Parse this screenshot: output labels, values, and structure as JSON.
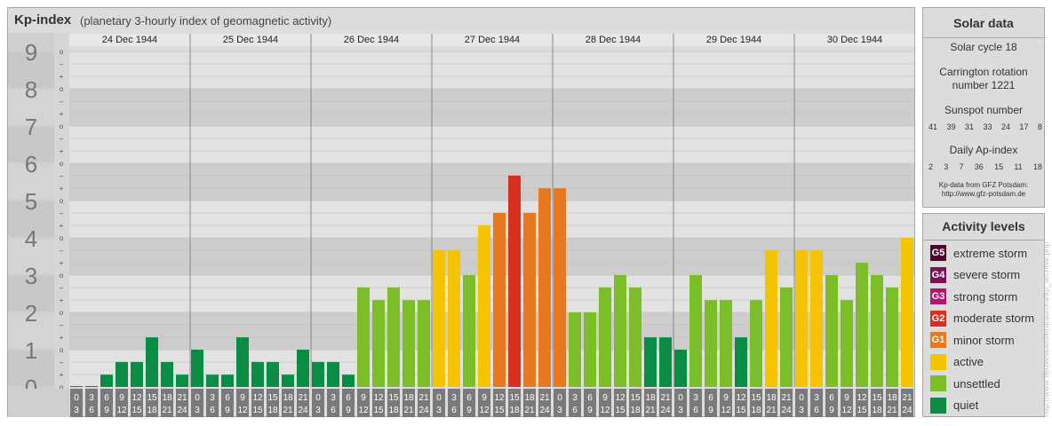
{
  "header": {
    "title": "Kp-index",
    "subtitle": "(planetary 3-hourly index of geomagnetic activity)"
  },
  "chart_data": {
    "type": "bar",
    "days": [
      "24 Dec 1944",
      "25 Dec 1944",
      "26 Dec 1944",
      "27 Dec 1944",
      "28 Dec 1944",
      "29 Dec 1944",
      "30 Dec 1944"
    ],
    "hour_ranges": [
      [
        "0",
        "3"
      ],
      [
        "3",
        "6"
      ],
      [
        "6",
        "9"
      ],
      [
        "9",
        "12"
      ],
      [
        "12",
        "15"
      ],
      [
        "15",
        "18"
      ],
      [
        "18",
        "21"
      ],
      [
        "21",
        "24"
      ]
    ],
    "y_axis_labels": [
      "0",
      "1",
      "2",
      "3",
      "4",
      "5",
      "6",
      "7",
      "8",
      "9"
    ],
    "y_minor_labels": [
      "o",
      "+",
      "–"
    ],
    "ylim": [
      0,
      9.33
    ],
    "values": [
      0.0,
      0.0,
      0.33,
      0.67,
      0.67,
      1.33,
      0.67,
      0.33,
      1.0,
      0.33,
      0.33,
      1.33,
      0.67,
      0.67,
      0.33,
      1.0,
      0.67,
      0.67,
      0.33,
      2.67,
      2.33,
      2.67,
      2.33,
      2.33,
      3.67,
      3.67,
      3.0,
      4.33,
      4.67,
      5.67,
      4.67,
      5.33,
      5.33,
      2.0,
      2.0,
      2.67,
      3.0,
      2.67,
      1.33,
      1.33,
      1.0,
      3.0,
      2.33,
      2.33,
      1.33,
      2.33,
      3.67,
      2.67,
      3.67,
      3.67,
      3.0,
      2.33,
      3.33,
      3.0,
      2.67,
      4.0
    ],
    "colors": {
      "quiet": "#0a8c45",
      "unsettled": "#7cbd2a",
      "active": "#f5c400",
      "minor": "#e8781e",
      "moderate": "#d83020",
      "strong": "#b0186e",
      "severe": "#7a1256",
      "extreme": "#4a0a2e"
    }
  },
  "solar": {
    "title": "Solar data",
    "cycle": "Solar cycle 18",
    "carrington_line1": "Carrington rotation",
    "carrington_line2": "number 1221",
    "sunspot_title": "Sunspot number",
    "sunspot_values": [
      "41",
      "39",
      "31",
      "33",
      "24",
      "17",
      "8"
    ],
    "ap_title": "Daily Ap-index",
    "ap_values": [
      "2",
      "3",
      "7",
      "36",
      "15",
      "11",
      "18"
    ],
    "source_line1": "Kp-data from GFZ Potsdam:",
    "source_line2": "http://www.gfz-potsdam.de"
  },
  "activity": {
    "title": "Activity levels",
    "items": [
      {
        "badge": "G5",
        "label": "extreme storm",
        "color": "#4a0a2e"
      },
      {
        "badge": "G4",
        "label": "severe storm",
        "color": "#7a1256"
      },
      {
        "badge": "G3",
        "label": "strong storm",
        "color": "#b0186e"
      },
      {
        "badge": "G2",
        "label": "moderate storm",
        "color": "#d83020"
      },
      {
        "badge": "G1",
        "label": "minor storm",
        "color": "#e8781e"
      },
      {
        "badge": "",
        "label": "active",
        "color": "#f5c400"
      },
      {
        "badge": "",
        "label": "unsettled",
        "color": "#7cbd2a"
      },
      {
        "badge": "",
        "label": "quiet",
        "color": "#0a8c45"
      }
    ]
  },
  "watermark": "http://www.fleuvestoeufera/aurora/kp_archive.php"
}
